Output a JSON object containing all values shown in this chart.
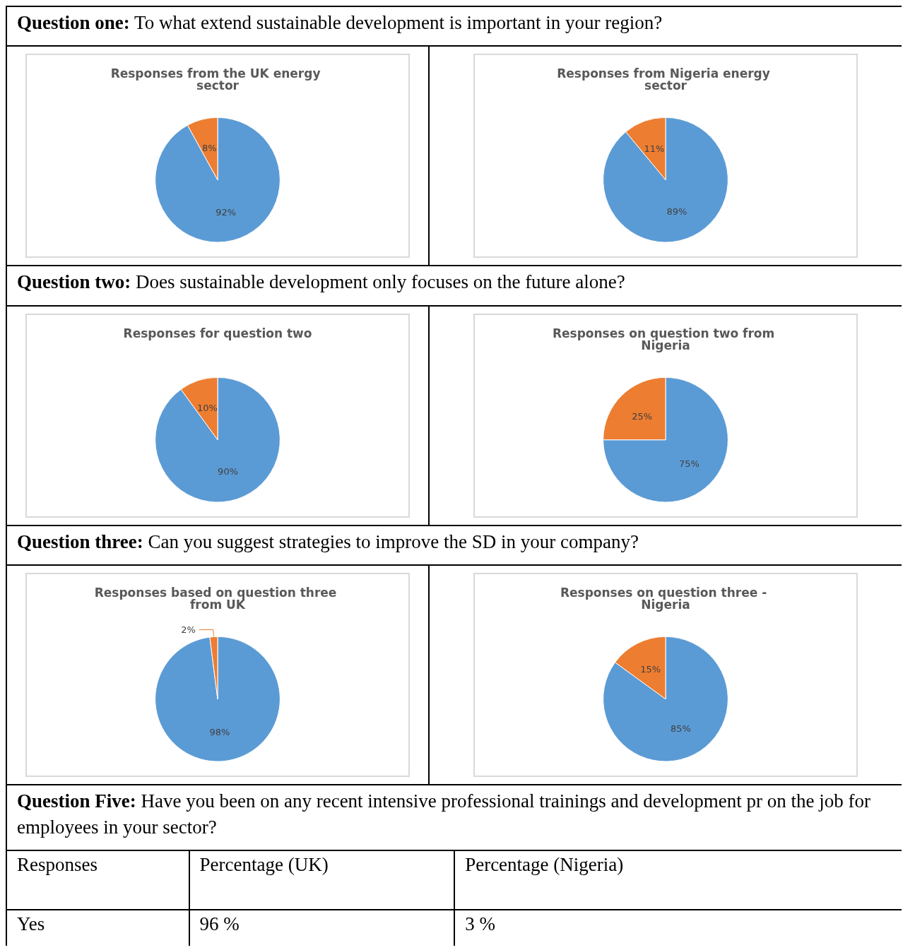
{
  "chart_data": [
    {
      "type": "pie",
      "title": "Responses from the UK energy sector",
      "categories": [
        null,
        null
      ],
      "values": [
        92,
        8
      ],
      "colors": [
        "#5b9bd5",
        "#ed7d31"
      ],
      "value_labels": [
        "92%",
        "8%"
      ],
      "annotations": [
        "Question one: To what extend sustainable development is important in your region?"
      ]
    },
    {
      "type": "pie",
      "title": "Responses from Nigeria energy sector",
      "categories": [
        null,
        null
      ],
      "values": [
        89,
        11
      ],
      "colors": [
        "#5b9bd5",
        "#ed7d31"
      ],
      "value_labels": [
        "89%",
        "11%"
      ]
    },
    {
      "type": "pie",
      "title": "Responses for question two",
      "categories": [
        null,
        null
      ],
      "values": [
        90,
        10
      ],
      "colors": [
        "#5b9bd5",
        "#ed7d31"
      ],
      "value_labels": [
        "90%",
        "10%"
      ],
      "annotations": [
        "Question two: Does sustainable development only focuses on the future alone?"
      ]
    },
    {
      "type": "pie",
      "title": "Responses on question two from Nigeria",
      "categories": [
        null,
        null
      ],
      "values": [
        75,
        25
      ],
      "colors": [
        "#5b9bd5",
        "#ed7d31"
      ],
      "value_labels": [
        "75%",
        "25%"
      ]
    },
    {
      "type": "pie",
      "title": "Responses based on question three from UK",
      "categories": [
        null,
        null
      ],
      "values": [
        98,
        2
      ],
      "colors": [
        "#5b9bd5",
        "#ed7d31"
      ],
      "value_labels": [
        "98%",
        "2%"
      ],
      "annotations": [
        "Question three: Can you suggest strategies to improve the SD in your company?"
      ]
    },
    {
      "type": "pie",
      "title": "Responses on question three - Nigeria",
      "categories": [
        null,
        null
      ],
      "values": [
        85,
        15
      ],
      "colors": [
        "#5b9bd5",
        "#ed7d31"
      ],
      "value_labels": [
        "85%",
        "15%"
      ]
    },
    {
      "type": "other",
      "annotations": [
        "Question Five: Have you been on any recent intensive professional trainings and development pr on the job for employees in your sector?",
        "Responses",
        "Percentage (UK)",
        "Percentage (Nigeria)",
        "Yes",
        "96 %",
        "3 %"
      ]
    }
  ]
}
